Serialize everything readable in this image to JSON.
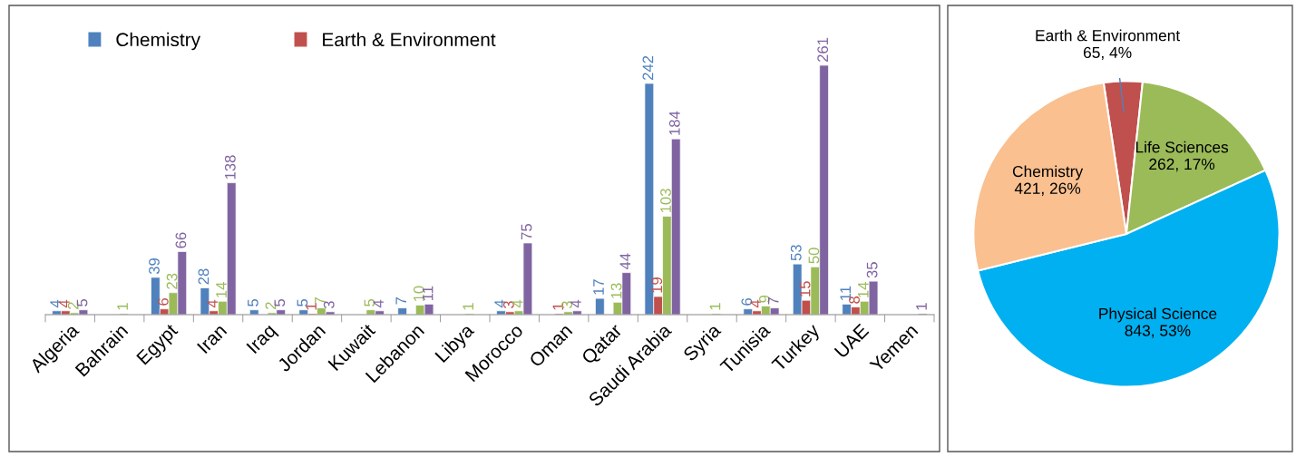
{
  "chart_data": [
    {
      "type": "bar",
      "categories": [
        "Algeria",
        "Bahrain",
        "Egypt",
        "Iran",
        "Iraq",
        "Jordan",
        "Kuwait",
        "Lebanon",
        "Libya",
        "Morocco",
        "Oman",
        "Qatar",
        "Saudi Arabia",
        "Syria",
        "Tunisia",
        "Turkey",
        "UAE",
        "Yemen"
      ],
      "series": [
        {
          "name": "Chemistry",
          "color": "#4f81bd",
          "values": [
            4,
            null,
            39,
            28,
            5,
            5,
            null,
            7,
            null,
            4,
            null,
            17,
            242,
            null,
            6,
            53,
            11,
            null
          ]
        },
        {
          "name": "Earth & Environment",
          "color": "#c0504d",
          "values": [
            4,
            null,
            6,
            4,
            null,
            1,
            null,
            null,
            null,
            3,
            1,
            null,
            19,
            null,
            4,
            15,
            8,
            null
          ]
        },
        {
          "color": "#9bbb59",
          "values": [
            2,
            1,
            23,
            14,
            2,
            7,
            5,
            10,
            1,
            4,
            3,
            13,
            103,
            1,
            9,
            50,
            14,
            null
          ]
        },
        {
          "color": "#8064a2",
          "values": [
            5,
            null,
            66,
            138,
            5,
            3,
            4,
            11,
            null,
            75,
            4,
            44,
            184,
            null,
            7,
            261,
            35,
            1
          ]
        }
      ],
      "tick_labels": "x",
      "data_labels": true,
      "legend": "top left",
      "grid": false
    },
    {
      "type": "pie",
      "categories": [
        "Earth & Environment",
        "Life Sciences",
        "Physical Science",
        "Chemistry"
      ],
      "values": [
        65,
        262,
        843,
        421
      ],
      "colors": [
        "#c0504d",
        "#9bbb59",
        "#00b0f0",
        "#fac090"
      ],
      "value_labels": [
        "65, 4%",
        "262, 17%",
        "843, 53%",
        "421, 26%"
      ]
    }
  ]
}
